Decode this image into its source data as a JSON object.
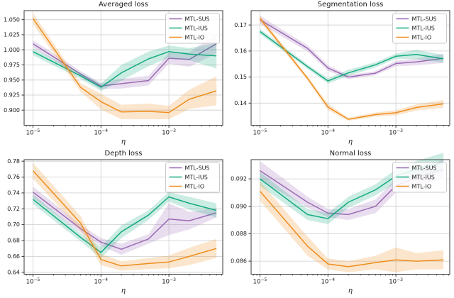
{
  "colors": {
    "mtl_sus": "#9b6bb5",
    "mtl_ius": "#14aa80",
    "mtl_io": "#ef8d1d",
    "grid": "#cdcdcd",
    "spine": "#3a3a3a",
    "text": "#1a1a1a",
    "legend_border": "#c9c9c9",
    "band_opacity": 0.22
  },
  "legend": {
    "entries": [
      "MTL-SUS",
      "MTL-IUS",
      "MTL-IO"
    ],
    "position": "upper right"
  },
  "chart_data": [
    {
      "type": "line",
      "title": "Averaged loss",
      "xlabel": "η",
      "x_scale": "log",
      "x": [
        1e-05,
        5e-05,
        0.0001,
        0.0002,
        0.0005,
        0.001,
        0.002,
        0.005
      ],
      "xticks": [
        1e-05,
        0.0001,
        0.001
      ],
      "xlim": [
        7.4e-06,
        0.0062
      ],
      "ylim": [
        0.875,
        1.065
      ],
      "yticks": [
        0.9,
        0.925,
        0.95,
        0.975,
        1.0,
        1.025,
        1.05
      ],
      "ytick_decimals": 3,
      "grid": true,
      "series": [
        {
          "name": "MTL-SUS",
          "color_key": "mtl_sus",
          "values": [
            1.01,
            0.96,
            0.94,
            0.944,
            0.949,
            0.986,
            0.984,
            1.01
          ],
          "band": [
            0.006,
            0.005,
            0.005,
            0.008,
            0.008,
            0.009,
            0.012,
            0.016
          ]
        },
        {
          "name": "MTL-IUS",
          "color_key": "mtl_ius",
          "values": [
            0.997,
            0.957,
            0.938,
            0.962,
            0.985,
            0.997,
            0.993,
            0.99
          ],
          "band": [
            0.006,
            0.005,
            0.006,
            0.013,
            0.012,
            0.01,
            0.01,
            0.021
          ]
        },
        {
          "name": "MTL-IO",
          "color_key": "mtl_io",
          "values": [
            1.052,
            0.938,
            0.914,
            0.897,
            0.898,
            0.896,
            0.918,
            0.932
          ],
          "band": [
            0.009,
            0.007,
            0.013,
            0.012,
            0.013,
            0.011,
            0.016,
            0.024
          ]
        }
      ]
    },
    {
      "type": "line",
      "title": "Segmentation loss",
      "xlabel": "η",
      "x_scale": "log",
      "x": [
        1e-05,
        5e-05,
        0.0001,
        0.0002,
        0.0005,
        0.001,
        0.002,
        0.005
      ],
      "xticks": [
        1e-05,
        0.0001,
        0.001
      ],
      "xlim": [
        7.4e-06,
        0.0062
      ],
      "ylim": [
        0.1315,
        0.1755
      ],
      "yticks": [
        0.14,
        0.15,
        0.16,
        0.17
      ],
      "ytick_decimals": 2,
      "grid": true,
      "series": [
        {
          "name": "MTL-SUS",
          "color_key": "mtl_sus",
          "values": [
            0.172,
            0.161,
            0.1535,
            0.15,
            0.1515,
            0.1552,
            0.1558,
            0.1572
          ],
          "band": [
            0.0015,
            0.0012,
            0.0011,
            0.0008,
            0.0008,
            0.001,
            0.0013,
            0.0018
          ]
        },
        {
          "name": "MTL-IUS",
          "color_key": "mtl_ius",
          "values": [
            0.1675,
            0.154,
            0.1485,
            0.1516,
            0.1547,
            0.158,
            0.1587,
            0.157
          ],
          "band": [
            0.001,
            0.0008,
            0.001,
            0.0012,
            0.001,
            0.001,
            0.0018,
            0.0015
          ]
        },
        {
          "name": "MTL-IO",
          "color_key": "mtl_io",
          "values": [
            0.1725,
            0.1495,
            0.1385,
            0.1338,
            0.1356,
            0.1363,
            0.1383,
            0.1397
          ],
          "band": [
            0.0012,
            0.0008,
            0.0012,
            0.0006,
            0.0008,
            0.001,
            0.0012,
            0.0015
          ]
        }
      ]
    },
    {
      "type": "line",
      "title": "Depth loss",
      "xlabel": "η",
      "x_scale": "log",
      "x": [
        1e-05,
        5e-05,
        0.0001,
        0.0002,
        0.0005,
        0.001,
        0.002,
        0.005
      ],
      "xticks": [
        1e-05,
        0.0001,
        0.001
      ],
      "xlim": [
        7.4e-06,
        0.0062
      ],
      "ylim": [
        0.6375,
        0.782
      ],
      "yticks": [
        0.64,
        0.66,
        0.68,
        0.7,
        0.72,
        0.74,
        0.76,
        0.78
      ],
      "ytick_decimals": 2,
      "grid": true,
      "series": [
        {
          "name": "MTL-SUS",
          "color_key": "mtl_sus",
          "values": [
            0.741,
            0.695,
            0.678,
            0.669,
            0.682,
            0.707,
            0.705,
            0.715
          ],
          "band": [
            0.007,
            0.005,
            0.005,
            0.007,
            0.006,
            0.02,
            0.011,
            0.006
          ]
        },
        {
          "name": "MTL-IUS",
          "color_key": "mtl_ius",
          "values": [
            0.732,
            0.684,
            0.665,
            0.691,
            0.712,
            0.735,
            0.727,
            0.718
          ],
          "band": [
            0.006,
            0.005,
            0.007,
            0.008,
            0.006,
            0.006,
            0.008,
            0.009
          ]
        },
        {
          "name": "MTL-IO",
          "color_key": "mtl_io",
          "values": [
            0.768,
            0.702,
            0.656,
            0.648,
            0.651,
            0.653,
            0.66,
            0.67
          ],
          "band": [
            0.01,
            0.009,
            0.007,
            0.006,
            0.007,
            0.008,
            0.011,
            0.012
          ]
        }
      ]
    },
    {
      "type": "line",
      "title": "Normal loss",
      "xlabel": "η",
      "x_scale": "log",
      "x": [
        1e-05,
        5e-05,
        0.0001,
        0.0002,
        0.0005,
        0.001,
        0.002,
        0.005
      ],
      "xticks": [
        1e-05,
        0.0001,
        0.001
      ],
      "xlim": [
        7.4e-06,
        0.0062
      ],
      "ylim": [
        0.08505,
        0.0934
      ],
      "yticks": [
        0.086,
        0.088,
        0.09,
        0.092
      ],
      "ytick_decimals": 3,
      "grid": true,
      "series": [
        {
          "name": "MTL-SUS",
          "color_key": "mtl_sus",
          "values": [
            0.0926,
            0.0903,
            0.0895,
            0.0894,
            0.09,
            0.0915,
            0.0921,
            0.0927
          ],
          "band": [
            0.0007,
            0.0004,
            0.0003,
            0.0004,
            0.0005,
            0.0005,
            0.0006,
            0.0007
          ]
        },
        {
          "name": "MTL-IUS",
          "color_key": "mtl_ius",
          "values": [
            0.092,
            0.0894,
            0.0891,
            0.0903,
            0.0912,
            0.0922,
            0.0927,
            0.0932
          ],
          "band": [
            0.0005,
            0.0004,
            0.0004,
            0.0004,
            0.0004,
            0.0005,
            0.0006,
            0.0007
          ]
        },
        {
          "name": "MTL-IO",
          "color_key": "mtl_io",
          "values": [
            0.0911,
            0.0871,
            0.0858,
            0.0856,
            0.0859,
            0.0861,
            0.086,
            0.0861
          ],
          "band": [
            0.0007,
            0.0007,
            0.0004,
            0.0004,
            0.0005,
            0.0009,
            0.0006,
            0.0007
          ]
        }
      ]
    }
  ]
}
